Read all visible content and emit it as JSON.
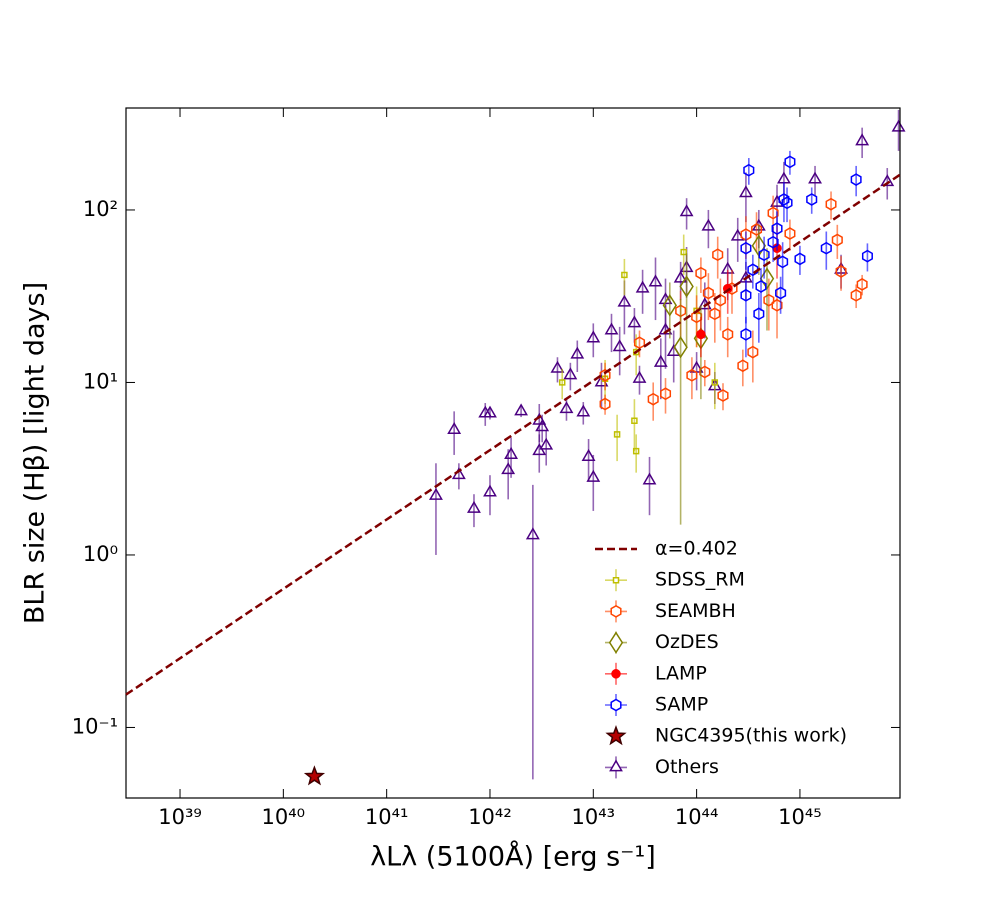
{
  "chart_data": {
    "type": "scatter",
    "xlabel": "λLλ (5100Å) [erg s⁻¹]",
    "ylabel": "BLR size (Hβ) [light days]",
    "xscale": "log",
    "yscale": "log",
    "xlim": [
      3e+38,
      9.3e+45
    ],
    "ylim": [
      0.039,
      390
    ],
    "xticks": [
      {
        "value": 1e+39,
        "label": "10³⁹"
      },
      {
        "value": 1e+40,
        "label": "10⁴⁰"
      },
      {
        "value": 1e+41,
        "label": "10⁴¹"
      },
      {
        "value": 1e+42,
        "label": "10⁴²"
      },
      {
        "value": 1e+43,
        "label": "10⁴³"
      },
      {
        "value": 1e+44,
        "label": "10⁴⁴"
      },
      {
        "value": 1e+45,
        "label": "10⁴⁵"
      }
    ],
    "yticks": [
      {
        "value": 0.1,
        "label": "10⁻¹"
      },
      {
        "value": 1,
        "label": "10⁰"
      },
      {
        "value": 10,
        "label": "10¹"
      },
      {
        "value": 100,
        "label": "10²"
      }
    ],
    "legend": "lower right",
    "series": [
      {
        "name": "α=0.402",
        "kind": "line",
        "dashed": true,
        "color": "#800000",
        "x": [
          3e+38,
          9.3e+45
        ],
        "y": [
          0.155,
          160
        ]
      },
      {
        "name": "SDSS_RM",
        "marker": "square",
        "color": "#bfbf00",
        "x": [
          5e+42,
          1.3e+43,
          1.7e+43,
          2e+43,
          2.5e+43,
          2.6e+43,
          7.5e+43,
          1e+44,
          1.5e+44,
          2.6e+43
        ],
        "y": [
          10,
          10.5,
          5,
          42,
          6,
          4,
          57,
          26,
          10,
          15
        ],
        "err": [
          2,
          3,
          1.5,
          10,
          2,
          1,
          15,
          10,
          3,
          4
        ]
      },
      {
        "name": "SEAMBH",
        "marker": "hexagon",
        "color": "#ff4500",
        "x": [
          1.3e+43,
          1.3e+43,
          2.8e+43,
          3.8e+43,
          5e+43,
          7e+43,
          9e+43,
          1e+44,
          1.1e+44,
          1.2e+44,
          1.3e+44,
          1.5e+44,
          1.6e+44,
          1.7e+44,
          1.8e+44,
          2e+44,
          2.2e+44,
          2.8e+44,
          3e+44,
          3.5e+44,
          3.8e+44,
          5e+44,
          5.5e+44,
          6e+44,
          8e+44,
          2e+45,
          2.3e+45,
          2.5e+45,
          3.5e+45,
          4e+45
        ],
        "y": [
          7.5,
          11,
          17,
          8,
          8.6,
          26,
          11,
          24,
          43,
          11.5,
          33,
          25,
          55,
          30,
          8.4,
          19,
          35,
          12.5,
          72,
          15,
          77,
          30,
          96,
          28,
          73,
          108,
          67,
          44,
          32,
          37
        ],
        "err": [
          1,
          2,
          3,
          2,
          2,
          8,
          3,
          8,
          10,
          2,
          10,
          8,
          15,
          10,
          1.5,
          5,
          10,
          3,
          20,
          5,
          20,
          10,
          25,
          10,
          15,
          20,
          15,
          10,
          5,
          5
        ]
      },
      {
        "name": "OzDES",
        "marker": "diamond",
        "color": "#808000",
        "x": [
          5.5e+43,
          7e+43,
          8e+43,
          1.1e+44,
          4e+44,
          4.8e+44
        ],
        "y": [
          28,
          16,
          36,
          18,
          62,
          40
        ],
        "err": [
          10,
          14.5,
          20,
          10,
          20,
          20
        ]
      },
      {
        "name": "LAMP",
        "marker": "circle",
        "color": "#ff0000",
        "x": [
          1.1e+44,
          2e+44,
          6e+44
        ],
        "y": [
          19,
          35,
          60
        ],
        "err": [
          5,
          10,
          20
        ]
      },
      {
        "name": "SAMP",
        "marker": "hexagon",
        "color": "#0000ff",
        "x": [
          3e+44,
          3e+44,
          3.2e+44,
          3.5e+44,
          4e+44,
          4.2e+44,
          4.5e+44,
          5.5e+44,
          6e+44,
          6.5e+44,
          6.8e+44,
          7e+44,
          7.5e+44,
          8e+44,
          1e+45,
          1.3e+45,
          1.8e+45,
          3.5e+45,
          4.5e+45,
          3e+44
        ],
        "y": [
          19,
          60,
          170,
          45,
          25,
          36,
          55,
          65,
          78,
          33,
          50,
          115,
          110,
          190,
          52,
          115,
          60,
          150,
          54,
          32
        ],
        "err": [
          5,
          15,
          30,
          10,
          8,
          10,
          15,
          15,
          20,
          8,
          15,
          30,
          25,
          30,
          10,
          20,
          15,
          30,
          10,
          10
        ]
      },
      {
        "name": "NGC4395(this work)",
        "marker": "star",
        "color": "#b40000",
        "x": [
          2e+40
        ],
        "y": [
          0.052
        ]
      },
      {
        "name": "Others",
        "marker": "triangle",
        "color": "#4b0082",
        "x": [
          3e+41,
          4.5e+41,
          5e+41,
          7e+41,
          9e+41,
          1e+42,
          1e+42,
          1.5e+42,
          1.6e+42,
          2e+42,
          2.6e+42,
          3e+42,
          3e+42,
          3.2e+42,
          3.5e+42,
          4.5e+42,
          5.5e+42,
          6e+42,
          7e+42,
          8e+42,
          9e+42,
          1e+43,
          1e+43,
          1.2e+43,
          1.5e+43,
          1.8e+43,
          2e+43,
          2.5e+43,
          2.8e+43,
          3e+43,
          3.5e+43,
          4e+43,
          4.5e+43,
          5e+43,
          6e+43,
          7e+43,
          8e+43,
          8e+43,
          1e+44,
          1.2e+44,
          1.3e+44,
          1.5e+44,
          2.5e+44,
          3e+44,
          4e+44,
          6e+44,
          7e+44,
          1.4e+45,
          2.5e+45,
          4e+45,
          7e+45,
          9e+45,
          3e+44,
          2e+44,
          5e+43
        ],
        "y": [
          2.2,
          5.3,
          2.9,
          1.85,
          6.6,
          2.3,
          6.6,
          3.1,
          3.8,
          6.8,
          1.3,
          4,
          6,
          5.5,
          4.3,
          12,
          7,
          11,
          14.5,
          6.7,
          3.7,
          2.8,
          18,
          10,
          20,
          16,
          29,
          22,
          10.5,
          35,
          2.7,
          38,
          13,
          20,
          15,
          40,
          97,
          46,
          12,
          28,
          80,
          9.5,
          70,
          125,
          80,
          110,
          150,
          150,
          45,
          250,
          145,
          300,
          40,
          45,
          30
        ],
        "err": [
          1.2,
          1.5,
          0.5,
          0.4,
          1,
          0.6,
          0.5,
          1,
          1,
          0.5,
          1.25,
          1,
          1.5,
          1,
          1,
          2,
          1,
          2,
          3,
          1,
          1,
          1,
          4,
          3,
          5,
          5,
          10,
          5,
          2,
          10,
          1,
          15,
          5,
          8,
          5,
          10,
          20,
          15,
          3,
          10,
          20,
          2,
          20,
          40,
          20,
          30,
          40,
          30,
          10,
          50,
          30,
          80,
          10,
          15,
          10
        ]
      }
    ]
  }
}
